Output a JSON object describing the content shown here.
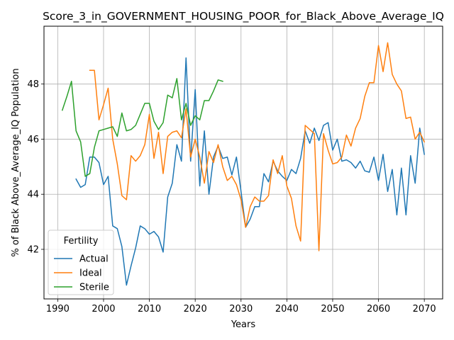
{
  "chart_data": {
    "type": "line",
    "title": "Score_3_in_GOVERNMENT_HOUSING_POOR_for_Black_Above_Average_IQ",
    "xlabel": "Years",
    "ylabel": "% of Black Above_Average_IQ Population",
    "xlim": [
      1987,
      2074
    ],
    "ylim": [
      40.2,
      50.1
    ],
    "x_ticks": [
      1990,
      2000,
      2010,
      2020,
      2030,
      2040,
      2050,
      2060,
      2070
    ],
    "y_ticks": [
      42,
      44,
      46,
      48
    ],
    "grid": true,
    "legend": {
      "title": "Fertility",
      "position": "lower-left"
    },
    "series": [
      {
        "name": "Actual",
        "color": "#1f77b4",
        "points": [
          [
            1994,
            44.55
          ],
          [
            1995,
            44.25
          ],
          [
            1996,
            44.35
          ],
          [
            1997,
            45.35
          ],
          [
            1998,
            45.35
          ],
          [
            1999,
            45.15
          ],
          [
            2000,
            44.35
          ],
          [
            2001,
            44.65
          ],
          [
            2002,
            42.85
          ],
          [
            2003,
            42.75
          ],
          [
            2004,
            42.1
          ],
          [
            2005,
            40.7
          ],
          [
            2006,
            41.4
          ],
          [
            2007,
            42.05
          ],
          [
            2008,
            42.85
          ],
          [
            2009,
            42.75
          ],
          [
            2010,
            42.55
          ],
          [
            2011,
            42.65
          ],
          [
            2012,
            42.45
          ],
          [
            2013,
            41.9
          ],
          [
            2014,
            43.9
          ],
          [
            2015,
            44.4
          ],
          [
            2016,
            45.8
          ],
          [
            2017,
            45.2
          ],
          [
            2018,
            48.95
          ],
          [
            2019,
            45.2
          ],
          [
            2020,
            47.8
          ],
          [
            2021,
            44.3
          ],
          [
            2022,
            46.3
          ],
          [
            2023,
            44.0
          ],
          [
            2024,
            45.35
          ],
          [
            2025,
            45.75
          ],
          [
            2026,
            45.3
          ],
          [
            2027,
            45.35
          ],
          [
            2028,
            44.7
          ],
          [
            2029,
            45.35
          ],
          [
            2030,
            44.1
          ],
          [
            2031,
            42.8
          ],
          [
            2032,
            43.1
          ],
          [
            2033,
            43.55
          ],
          [
            2034,
            43.55
          ],
          [
            2035,
            44.75
          ],
          [
            2036,
            44.45
          ],
          [
            2037,
            45.2
          ],
          [
            2038,
            44.85
          ],
          [
            2039,
            44.65
          ],
          [
            2040,
            44.5
          ],
          [
            2041,
            44.9
          ],
          [
            2042,
            44.75
          ],
          [
            2043,
            45.3
          ],
          [
            2044,
            46.3
          ],
          [
            2045,
            45.85
          ],
          [
            2046,
            46.4
          ],
          [
            2047,
            45.95
          ],
          [
            2048,
            46.5
          ],
          [
            2049,
            46.6
          ],
          [
            2050,
            45.6
          ],
          [
            2051,
            46.0
          ],
          [
            2052,
            45.2
          ],
          [
            2053,
            45.25
          ],
          [
            2054,
            45.15
          ],
          [
            2055,
            44.95
          ],
          [
            2056,
            45.2
          ],
          [
            2057,
            44.85
          ],
          [
            2058,
            44.8
          ],
          [
            2059,
            45.35
          ],
          [
            2060,
            44.5
          ],
          [
            2061,
            45.45
          ],
          [
            2062,
            44.1
          ],
          [
            2063,
            44.9
          ],
          [
            2064,
            43.25
          ],
          [
            2065,
            44.95
          ],
          [
            2066,
            43.25
          ],
          [
            2067,
            45.4
          ],
          [
            2068,
            44.4
          ],
          [
            2069,
            46.4
          ],
          [
            2070,
            45.45
          ]
        ]
      },
      {
        "name": "Ideal",
        "color": "#ff7f0e",
        "points": [
          [
            1997,
            48.5
          ],
          [
            1998,
            48.5
          ],
          [
            1999,
            46.7
          ],
          [
            2000,
            47.25
          ],
          [
            2001,
            47.85
          ],
          [
            2002,
            46.0
          ],
          [
            2003,
            45.1
          ],
          [
            2004,
            43.95
          ],
          [
            2005,
            43.8
          ],
          [
            2006,
            45.4
          ],
          [
            2007,
            45.2
          ],
          [
            2008,
            45.4
          ],
          [
            2009,
            45.8
          ],
          [
            2010,
            46.9
          ],
          [
            2011,
            45.3
          ],
          [
            2012,
            46.25
          ],
          [
            2013,
            44.75
          ],
          [
            2014,
            46.1
          ],
          [
            2015,
            46.25
          ],
          [
            2016,
            46.3
          ],
          [
            2017,
            46.05
          ],
          [
            2018,
            47.1
          ],
          [
            2019,
            45.35
          ],
          [
            2020,
            46.0
          ],
          [
            2021,
            45.35
          ],
          [
            2022,
            44.4
          ],
          [
            2023,
            45.55
          ],
          [
            2024,
            45.15
          ],
          [
            2025,
            45.8
          ],
          [
            2026,
            45.0
          ],
          [
            2027,
            44.5
          ],
          [
            2028,
            44.65
          ],
          [
            2029,
            44.35
          ],
          [
            2030,
            43.8
          ],
          [
            2031,
            42.8
          ],
          [
            2032,
            43.55
          ],
          [
            2033,
            43.9
          ],
          [
            2034,
            43.75
          ],
          [
            2035,
            43.75
          ],
          [
            2036,
            43.95
          ],
          [
            2037,
            45.25
          ],
          [
            2038,
            44.75
          ],
          [
            2039,
            45.4
          ],
          [
            2040,
            44.3
          ],
          [
            2041,
            43.85
          ],
          [
            2042,
            42.85
          ],
          [
            2043,
            42.3
          ],
          [
            2044,
            46.5
          ],
          [
            2045,
            46.35
          ],
          [
            2046,
            46.2
          ],
          [
            2047,
            41.95
          ],
          [
            2048,
            46.2
          ],
          [
            2049,
            45.6
          ],
          [
            2050,
            45.1
          ],
          [
            2051,
            45.15
          ],
          [
            2052,
            45.35
          ],
          [
            2053,
            46.15
          ],
          [
            2054,
            45.75
          ],
          [
            2055,
            46.4
          ],
          [
            2056,
            46.75
          ],
          [
            2057,
            47.55
          ],
          [
            2058,
            48.05
          ],
          [
            2059,
            48.05
          ],
          [
            2060,
            49.4
          ],
          [
            2061,
            48.45
          ],
          [
            2062,
            49.5
          ],
          [
            2063,
            48.35
          ],
          [
            2064,
            48.0
          ],
          [
            2065,
            47.75
          ],
          [
            2066,
            46.75
          ],
          [
            2067,
            46.8
          ],
          [
            2068,
            46.0
          ],
          [
            2069,
            46.25
          ],
          [
            2070,
            45.9
          ]
        ]
      },
      {
        "name": "Sterile",
        "color": "#2ca02c",
        "points": [
          [
            1991,
            47.05
          ],
          [
            1992,
            47.55
          ],
          [
            1993,
            48.1
          ],
          [
            1994,
            46.3
          ],
          [
            1995,
            45.9
          ],
          [
            1996,
            44.65
          ],
          [
            1997,
            44.75
          ],
          [
            1998,
            45.7
          ],
          [
            1999,
            46.3
          ],
          [
            2000,
            46.35
          ],
          [
            2001,
            46.4
          ],
          [
            2002,
            46.45
          ],
          [
            2003,
            46.1
          ],
          [
            2004,
            46.95
          ],
          [
            2005,
            46.3
          ],
          [
            2006,
            46.35
          ],
          [
            2007,
            46.5
          ],
          [
            2008,
            46.9
          ],
          [
            2009,
            47.3
          ],
          [
            2010,
            47.3
          ],
          [
            2011,
            46.65
          ],
          [
            2012,
            46.35
          ],
          [
            2013,
            46.6
          ],
          [
            2014,
            47.6
          ],
          [
            2015,
            47.5
          ],
          [
            2016,
            48.2
          ],
          [
            2017,
            46.7
          ],
          [
            2018,
            47.3
          ],
          [
            2019,
            46.5
          ],
          [
            2020,
            46.85
          ],
          [
            2021,
            46.7
          ],
          [
            2022,
            47.4
          ],
          [
            2023,
            47.4
          ],
          [
            2024,
            47.75
          ],
          [
            2025,
            48.15
          ],
          [
            2026,
            48.1
          ]
        ]
      }
    ]
  }
}
